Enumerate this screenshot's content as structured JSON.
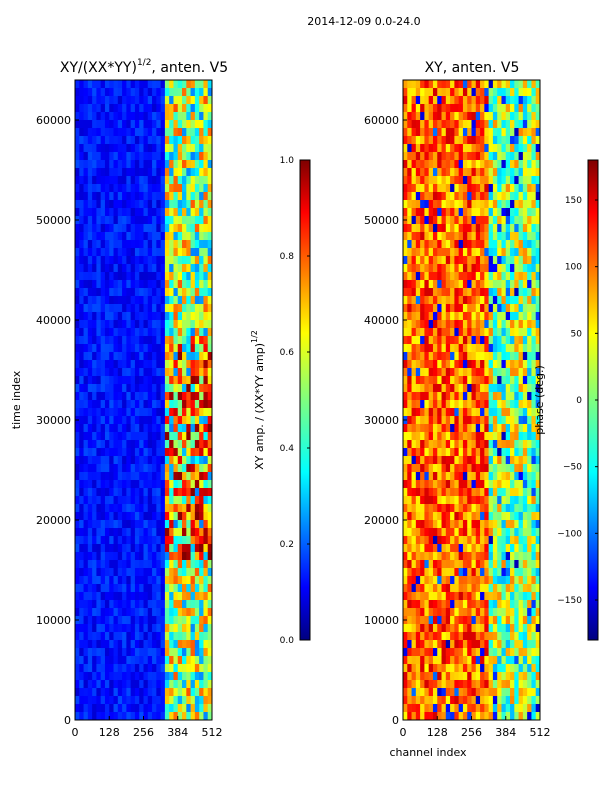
{
  "suptitle": "2014-12-09 0.0-24.0",
  "colors": {
    "jet": [
      "#00007f",
      "#0000ff",
      "#007fff",
      "#00ffff",
      "#7fff7f",
      "#ffff00",
      "#ff7f00",
      "#ff0000",
      "#7f0000"
    ]
  },
  "chart_data": [
    {
      "type": "heatmap",
      "title": "XY/(XX*YY)",
      "title_sup": "1/2",
      "title_suffix": ", anten. V5",
      "xlabel": "",
      "ylabel": "time index",
      "xlim": [
        0,
        512
      ],
      "ylim": [
        0,
        64000
      ],
      "xticks": [
        0,
        128,
        256,
        384,
        512
      ],
      "yticks": [
        0,
        10000,
        20000,
        30000,
        40000,
        50000,
        60000
      ],
      "xtick_labels": [
        "0",
        "128",
        "256",
        "384",
        "512"
      ],
      "ytick_labels": [
        "0",
        "10000",
        "20000",
        "30000",
        "40000",
        "50000",
        "60000"
      ],
      "colorbar": {
        "label": "XY amp. / (XX*YY amp)",
        "label_sup": "1/2",
        "range": [
          0.0,
          1.0
        ],
        "ticks": [
          0.0,
          0.2,
          0.4,
          0.6,
          0.8,
          1.0
        ],
        "tick_labels": [
          "0.0",
          "0.2",
          "0.4",
          "0.6",
          "0.8",
          "1.0"
        ]
      },
      "colormap": "jet"
    },
    {
      "type": "heatmap",
      "title": "XY, anten. V5",
      "xlabel": "channel index",
      "ylabel": "",
      "xlim": [
        0,
        512
      ],
      "ylim": [
        0,
        64000
      ],
      "xticks": [
        0,
        128,
        256,
        384,
        512
      ],
      "yticks": [
        0,
        10000,
        20000,
        30000,
        40000,
        50000,
        60000
      ],
      "xtick_labels": [
        "0",
        "128",
        "256",
        "384",
        "512"
      ],
      "ytick_labels": [
        "0",
        "10000",
        "20000",
        "30000",
        "40000",
        "50000",
        "60000"
      ],
      "colorbar": {
        "label": "phase (deg.)",
        "range": [
          -180,
          180
        ],
        "ticks": [
          -150,
          -100,
          -50,
          0,
          50,
          100,
          150
        ],
        "tick_labels": [
          "−150",
          "−100",
          "−50",
          "0",
          "50",
          "100",
          "150"
        ]
      },
      "colormap": "jet"
    }
  ]
}
